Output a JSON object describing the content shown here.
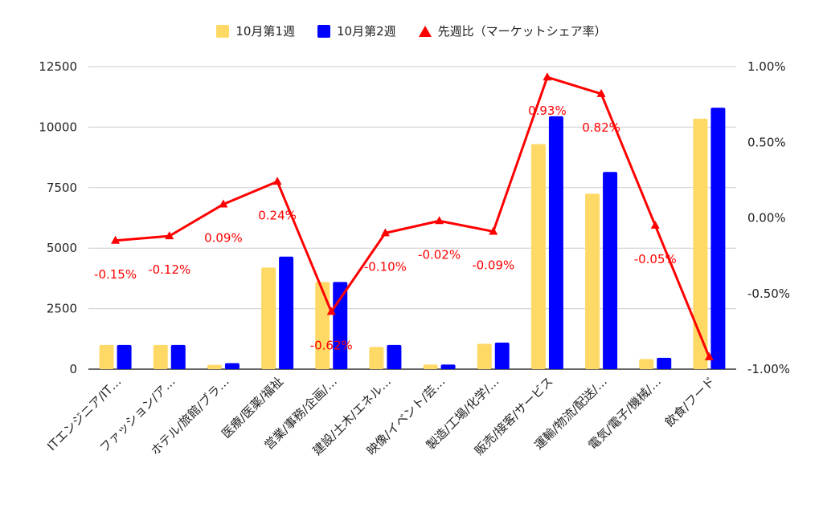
{
  "chart_data": {
    "type": "bar",
    "title": "",
    "xlabel": "",
    "ylabel": "",
    "categories": [
      "ITエンジニア/IT…",
      "ファッション/ア…",
      "ホテル/旅館/ブラ…",
      "医療/医薬/福祉",
      "営業/事務/企画/…",
      "建設/土木/エネル…",
      "映像/イベント/芸…",
      "製造/工場/化学/…",
      "販売/接客/サービス",
      "運輸/物流/配送/…",
      "電気/電子/機械/…",
      "飲食/フード"
    ],
    "series": [
      {
        "name": "10月第1週",
        "type": "bar",
        "axis": "left",
        "color": "#ffd966",
        "values": [
          1000,
          1000,
          180,
          4200,
          3600,
          920,
          190,
          1050,
          9300,
          7250,
          420,
          10350
        ]
      },
      {
        "name": "10月第2週",
        "type": "bar",
        "axis": "left",
        "color": "#0000ff",
        "values": [
          1000,
          1000,
          250,
          4650,
          3600,
          1000,
          190,
          1100,
          10450,
          8150,
          470,
          10800
        ]
      },
      {
        "name": "先週比（マーケットシェア率）",
        "type": "line",
        "axis": "right",
        "color": "#ff0000",
        "values": [
          -0.15,
          -0.12,
          0.09,
          0.24,
          -0.62,
          -0.1,
          -0.02,
          -0.09,
          0.93,
          0.82,
          -0.05,
          -0.92
        ],
        "labels": [
          "-0.15%",
          "-0.12%",
          "0.09%",
          "0.24%",
          "-0.62%",
          "-0.10%",
          "-0.02%",
          "-0.09%",
          "0.93%",
          "0.82%",
          "-0.05%",
          ""
        ]
      }
    ],
    "y_left": {
      "ylim": [
        0,
        12500
      ],
      "ticks": [
        0,
        2500,
        5000,
        7500,
        10000,
        12500
      ],
      "tick_labels": [
        "0",
        "2500",
        "5000",
        "7500",
        "10000",
        "12500"
      ]
    },
    "y_right": {
      "ylim": [
        -1.0,
        1.0
      ],
      "ticks": [
        -1.0,
        -0.5,
        0.0,
        0.5,
        1.0
      ],
      "tick_labels": [
        "-1.00%",
        "-0.50%",
        "0.00%",
        "0.50%",
        "1.00%"
      ]
    },
    "grid": true,
    "legend_position": "top-center"
  }
}
